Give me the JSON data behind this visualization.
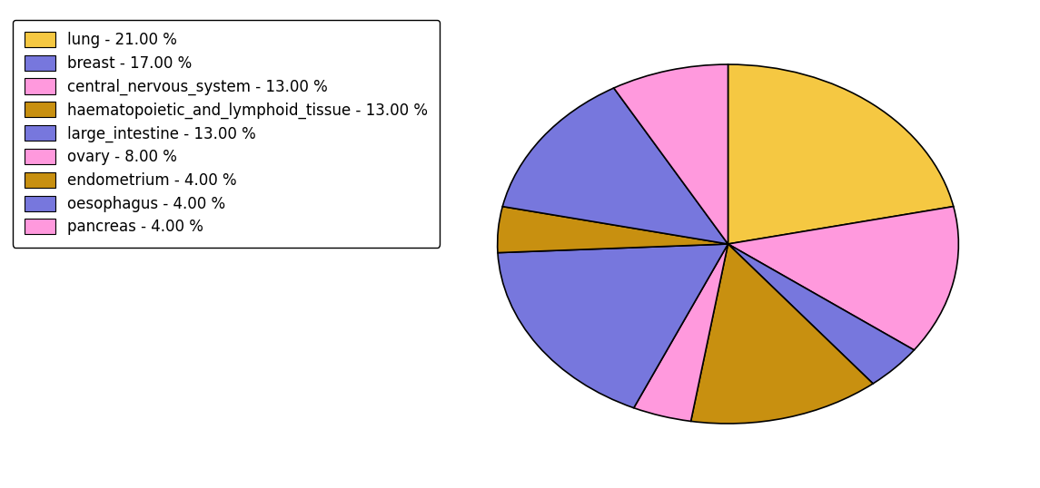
{
  "labels": [
    "lung",
    "central_nervous_system",
    "oesophagus",
    "haematopoietic_and_lymphoid_tissue",
    "pancreas",
    "breast",
    "endometrium",
    "large_intestine",
    "ovary"
  ],
  "values": [
    21,
    13,
    4,
    13,
    4,
    17,
    4,
    13,
    8
  ],
  "colors": [
    "#F5C842",
    "#FF99DD",
    "#7777DD",
    "#C89010",
    "#FF99DD",
    "#7777DD",
    "#C89010",
    "#7777DD",
    "#FF99DD"
  ],
  "legend_labels": [
    "lung - 21.00 %",
    "breast - 17.00 %",
    "central_nervous_system - 13.00 %",
    "haematopoietic_and_lymphoid_tissue - 13.00 %",
    "large_intestine - 13.00 %",
    "ovary - 8.00 %",
    "endometrium - 4.00 %",
    "oesophagus - 4.00 %",
    "pancreas - 4.00 %"
  ],
  "legend_colors": [
    "#F5C842",
    "#7777DD",
    "#FF99DD",
    "#C89010",
    "#7777DD",
    "#FF99DD",
    "#C89010",
    "#7777DD",
    "#FF99DD"
  ],
  "startangle": 90,
  "figsize": [
    11.45,
    5.38
  ],
  "dpi": 100,
  "background_color": "#FFFFFF"
}
